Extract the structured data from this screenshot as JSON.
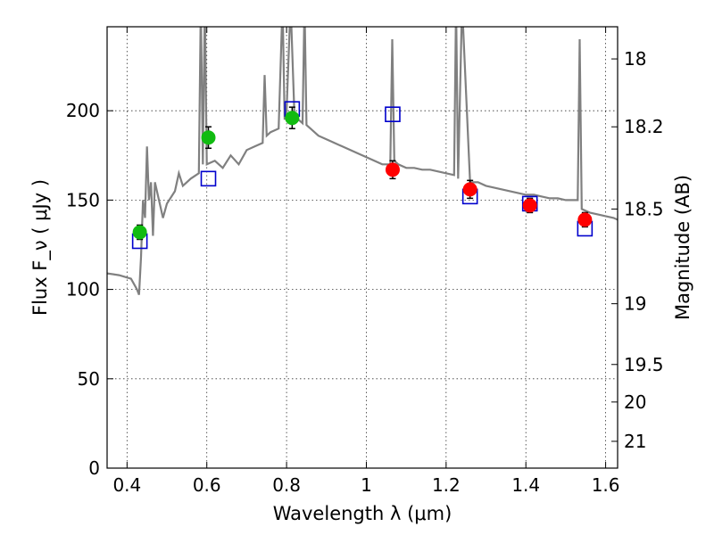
{
  "chart_data": {
    "type": "scatter",
    "title": "",
    "xlabel": "Wavelength  λ (μm)",
    "ylabel": "Flux  F_ν  ( μJy )",
    "ylabel_right": "Magnitude (AB)",
    "xlim": [
      0.35,
      1.63
    ],
    "ylim": [
      0,
      247
    ],
    "grid": true,
    "x_ticks": [
      0.4,
      0.6,
      0.8,
      1.0,
      1.2,
      1.4,
      1.6
    ],
    "x_tick_labels": [
      "0.4",
      "0.6",
      "0.8",
      "1",
      "1.2",
      "1.4",
      "1.6"
    ],
    "y_ticks": [
      0,
      50,
      100,
      150,
      200
    ],
    "y_tick_labels": [
      "0",
      "50",
      "100",
      "150",
      "200"
    ],
    "right_ticks": [
      {
        "label": "18",
        "flux": 229
      },
      {
        "label": "18.2",
        "flux": 191
      },
      {
        "label": "18.5",
        "flux": 145
      },
      {
        "label": "19",
        "flux": 92
      },
      {
        "label": "19.5",
        "flux": 58
      },
      {
        "label": "20",
        "flux": 37
      },
      {
        "label": "21",
        "flux": 15
      }
    ],
    "colors": {
      "spectrum": "#808080",
      "optical_points": "#11bb11",
      "nir_points": "#ff0000",
      "model_squares": "#0000cc",
      "error_bars": "#000000"
    },
    "series": [
      {
        "kind": "spectrum",
        "x": [
          0.35,
          0.38,
          0.41,
          0.425,
          0.43,
          0.435,
          0.44,
          0.445,
          0.45,
          0.455,
          0.46,
          0.465,
          0.47,
          0.48,
          0.49,
          0.5,
          0.52,
          0.53,
          0.54,
          0.56,
          0.58,
          0.585,
          0.59,
          0.595,
          0.6,
          0.62,
          0.64,
          0.66,
          0.68,
          0.7,
          0.72,
          0.74,
          0.745,
          0.75,
          0.76,
          0.78,
          0.79,
          0.795,
          0.8,
          0.81,
          0.82,
          0.83,
          0.84,
          0.845,
          0.85,
          0.86,
          0.88,
          0.9,
          0.92,
          0.94,
          0.96,
          0.98,
          1.0,
          1.02,
          1.04,
          1.06,
          1.065,
          1.07,
          1.08,
          1.1,
          1.12,
          1.14,
          1.16,
          1.18,
          1.2,
          1.22,
          1.225,
          1.23,
          1.24,
          1.26,
          1.28,
          1.3,
          1.32,
          1.34,
          1.36,
          1.38,
          1.4,
          1.42,
          1.44,
          1.46,
          1.48,
          1.5,
          1.52,
          1.53,
          1.535,
          1.54,
          1.56,
          1.58,
          1.6,
          1.62,
          1.63
        ],
        "values": [
          109,
          108,
          106,
          100,
          97,
          118,
          150,
          140,
          180,
          150,
          160,
          130,
          160,
          150,
          140,
          148,
          155,
          165,
          158,
          162,
          165,
          260,
          170,
          260,
          170,
          172,
          168,
          175,
          170,
          178,
          180,
          182,
          220,
          186,
          188,
          190,
          260,
          195,
          200,
          260,
          196,
          195,
          193,
          260,
          192,
          190,
          186,
          184,
          182,
          180,
          178,
          176,
          174,
          172,
          170,
          170,
          240,
          172,
          170,
          168,
          168,
          167,
          167,
          166,
          165,
          164,
          260,
          162,
          260,
          160,
          160,
          158,
          157,
          156,
          155,
          154,
          153,
          153,
          152,
          151,
          151,
          150,
          150,
          150,
          240,
          145,
          143,
          142,
          141,
          140,
          139
        ]
      },
      {
        "kind": "model-squares",
        "x": [
          0.432,
          0.604,
          0.814,
          1.066,
          1.26,
          1.41,
          1.548
        ],
        "values": [
          127,
          162,
          201,
          198,
          152,
          148,
          134
        ]
      },
      {
        "kind": "optical-points",
        "x": [
          0.432,
          0.604,
          0.814
        ],
        "values": [
          132,
          185,
          196
        ],
        "errors": [
          4,
          6,
          6
        ]
      },
      {
        "kind": "nir-points",
        "x": [
          1.066,
          1.26,
          1.41,
          1.548
        ],
        "values": [
          167,
          156,
          147,
          139
        ],
        "errors": [
          5,
          5,
          4,
          4
        ]
      }
    ]
  }
}
